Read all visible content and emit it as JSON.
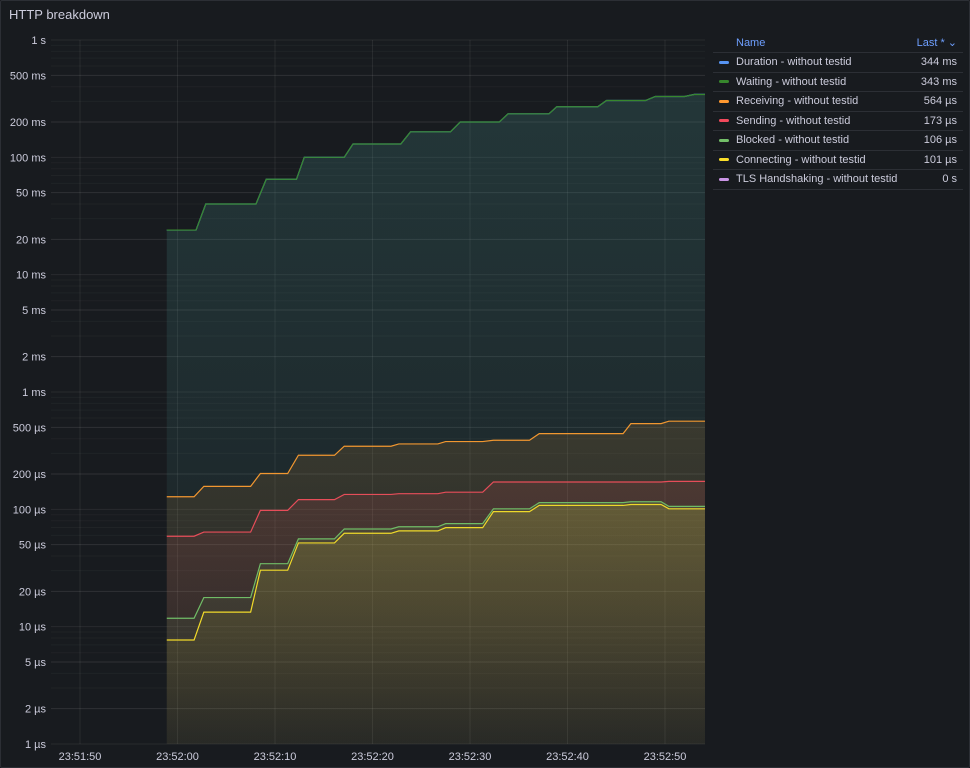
{
  "panel": {
    "title": "HTTP breakdown"
  },
  "legend": {
    "header_name": "Name",
    "header_last": "Last * ⌄",
    "items": [
      {
        "name": "Duration - without testid",
        "last": "344 ms",
        "color": "#5794f2"
      },
      {
        "name": "Waiting - without testid",
        "last": "343 ms",
        "color": "#37872d"
      },
      {
        "name": "Receiving - without testid",
        "last": "564 µs",
        "color": "#ff9830"
      },
      {
        "name": "Sending - without testid",
        "last": "173 µs",
        "color": "#f2495c"
      },
      {
        "name": "Blocked - without testid",
        "last": "106 µs",
        "color": "#73bf69"
      },
      {
        "name": "Connecting - without testid",
        "last": "101 µs",
        "color": "#fade2a"
      },
      {
        "name": "TLS Handshaking - without testid",
        "last": "0 s",
        "color": "#ca95e5"
      }
    ]
  },
  "chart_data": {
    "type": "line",
    "title": "HTTP breakdown",
    "xlabel": "",
    "ylabel": "",
    "x_unit": "seconds after 23:51:50",
    "y_unit": "µs",
    "y_scale": "log10",
    "ylim": [
      1,
      1000000
    ],
    "xlim": [
      -2.9,
      64.1
    ],
    "y_ticks": [
      {
        "v": 1000000,
        "label": "1 s"
      },
      {
        "v": 500000,
        "label": "500 ms"
      },
      {
        "v": 200000,
        "label": "200 ms"
      },
      {
        "v": 100000,
        "label": "100 ms"
      },
      {
        "v": 50000,
        "label": "50 ms"
      },
      {
        "v": 20000,
        "label": "20 ms"
      },
      {
        "v": 10000,
        "label": "10 ms"
      },
      {
        "v": 5000,
        "label": "5 ms"
      },
      {
        "v": 2000,
        "label": "2 ms"
      },
      {
        "v": 1000,
        "label": "1 ms"
      },
      {
        "v": 500,
        "label": "500 µs"
      },
      {
        "v": 200,
        "label": "200 µs"
      },
      {
        "v": 100,
        "label": "100 µs"
      },
      {
        "v": 50,
        "label": "50 µs"
      },
      {
        "v": 20,
        "label": "20 µs"
      },
      {
        "v": 10,
        "label": "10 µs"
      },
      {
        "v": 5,
        "label": "5 µs"
      },
      {
        "v": 2,
        "label": "2 µs"
      },
      {
        "v": 1,
        "label": "1 µs"
      }
    ],
    "x_ticks": [
      {
        "t": 0,
        "label": "23:51:50"
      },
      {
        "t": 10,
        "label": "23:52:00"
      },
      {
        "t": 20,
        "label": "23:52:10"
      },
      {
        "t": 30,
        "label": "23:52:20"
      },
      {
        "t": 40,
        "label": "23:52:30"
      },
      {
        "t": 50,
        "label": "23:52:40"
      },
      {
        "t": 60,
        "label": "23:52:50"
      }
    ],
    "series": [
      {
        "name": "Duration - without testid",
        "color": "#5794f2",
        "t": [
          8.9,
          11.9,
          12.9,
          18.05,
          19.1,
          22.2,
          23,
          27.1,
          28,
          32.9,
          33.9,
          38,
          39,
          43,
          43.9,
          48.1,
          48.9,
          53.1,
          54,
          58,
          59,
          62,
          63,
          64.1
        ],
        "values": [
          24000,
          24000,
          40000,
          40000,
          65000,
          65000,
          100000,
          100000,
          130000,
          130000,
          165000,
          165000,
          200000,
          200000,
          235000,
          235000,
          270000,
          270000,
          305000,
          305000,
          330000,
          330000,
          344000,
          344000
        ]
      },
      {
        "name": "Waiting - without testid",
        "color": "#37872d",
        "t": [
          8.9,
          11.9,
          12.9,
          18.05,
          19.1,
          22.2,
          23,
          27.1,
          28,
          32.9,
          33.9,
          38,
          39,
          43,
          43.9,
          48.1,
          48.9,
          53.1,
          54,
          58,
          59,
          62,
          63,
          64.1
        ],
        "values": [
          24000,
          24000,
          40000,
          40000,
          65000,
          65000,
          100000,
          100000,
          130000,
          130000,
          165000,
          165000,
          200000,
          200000,
          235000,
          235000,
          270000,
          270000,
          305000,
          305000,
          330000,
          330000,
          343000,
          343000
        ]
      },
      {
        "name": "Receiving - without testid",
        "color": "#ff9830",
        "t": [
          8.9,
          11.7,
          12.7,
          17.5,
          18.5,
          21.3,
          22.4,
          26.1,
          27.1,
          31.9,
          32.7,
          36.7,
          37.5,
          41.3,
          42.4,
          46.1,
          47.1,
          55.7,
          56.5,
          59.6,
          60.4,
          64.1
        ],
        "values": [
          128,
          128,
          157,
          157,
          202,
          202,
          289,
          289,
          345,
          345,
          361,
          361,
          378,
          378,
          388,
          388,
          442,
          442,
          538,
          538,
          564,
          564
        ]
      },
      {
        "name": "Sending - without testid",
        "color": "#f2495c",
        "t": [
          8.9,
          11.7,
          12.7,
          17.5,
          18.5,
          21.3,
          22.4,
          26.1,
          27.1,
          31.9,
          32.7,
          36.7,
          37.5,
          41.3,
          42.4,
          46.1,
          47.1,
          55.7,
          56.5,
          59.6,
          60.4,
          64.1
        ],
        "values": [
          59,
          59,
          64,
          64,
          98,
          98,
          121,
          121,
          134,
          134,
          136,
          136,
          140,
          140,
          171,
          171,
          171,
          171,
          171,
          171,
          173,
          173
        ]
      },
      {
        "name": "Blocked - without testid",
        "color": "#73bf69",
        "t": [
          8.9,
          11.7,
          12.7,
          17.5,
          18.5,
          21.3,
          22.4,
          26.1,
          27.1,
          31.9,
          32.7,
          36.7,
          37.5,
          41.3,
          42.4,
          46.1,
          47.1,
          55.7,
          56.5,
          59.6,
          60.4,
          64.1
        ],
        "values": [
          11.8,
          11.8,
          17.7,
          17.7,
          34.4,
          34.4,
          56,
          56,
          68,
          68,
          71,
          71,
          75.5,
          75.5,
          101,
          101,
          114,
          114,
          116,
          116,
          106,
          106
        ]
      },
      {
        "name": "Connecting - without testid",
        "color": "#fade2a",
        "t": [
          8.9,
          11.7,
          12.7,
          17.5,
          18.5,
          21.3,
          22.4,
          26.1,
          27.1,
          31.9,
          32.7,
          36.7,
          37.5,
          41.3,
          42.4,
          46.1,
          47.1,
          55.7,
          56.5,
          59.6,
          60.4,
          64.1
        ],
        "values": [
          7.7,
          7.7,
          13.3,
          13.3,
          30.3,
          30.3,
          51.7,
          51.7,
          62.5,
          62.5,
          65.5,
          65.5,
          69.8,
          69.8,
          95.6,
          95.6,
          108,
          108,
          110,
          110,
          101,
          101
        ]
      },
      {
        "name": "TLS Handshaking - without testid",
        "color": "#ca95e5",
        "t": [],
        "values": []
      }
    ],
    "grid": true,
    "legend_position": "right"
  }
}
